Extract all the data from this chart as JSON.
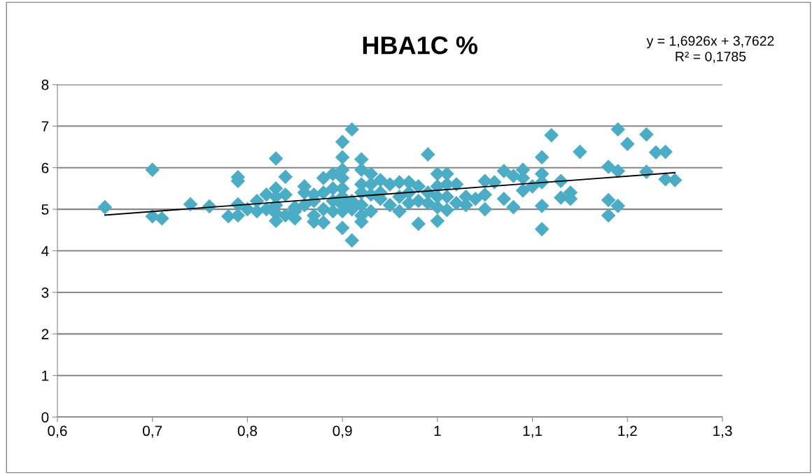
{
  "chart_data": {
    "type": "scatter",
    "title": "HBA1C %",
    "annotations": [
      "y = 1,6926x + 3,7622\nR² = 0,1785"
    ],
    "marker": "diamond",
    "grid": "y",
    "legend": false,
    "xlim": [
      0.6,
      1.3
    ],
    "xticks": [
      {
        "value": 0.6,
        "label": "0,6"
      },
      {
        "value": 0.7,
        "label": "0,7"
      },
      {
        "value": 0.8,
        "label": "0,8"
      },
      {
        "value": 0.9,
        "label": "0,9"
      },
      1,
      {
        "value": 1.1,
        "label": "1,1"
      },
      {
        "value": 1.2,
        "label": "1,2"
      },
      {
        "value": 1.3,
        "label": "1,3"
      }
    ],
    "ylim": [
      0,
      8
    ],
    "yticks": [
      0,
      1,
      2,
      3,
      4,
      5,
      6,
      7,
      8
    ],
    "series": [
      {
        "color": "#4bacc6",
        "x": [
          0.65,
          0.7,
          0.7,
          0.71,
          0.74,
          0.76,
          0.78,
          0.79,
          0.79,
          0.79,
          0.79,
          0.8,
          0.81,
          0.81,
          0.82,
          0.82,
          0.83,
          0.83,
          0.83,
          0.83,
          0.83,
          0.83,
          0.84,
          0.84,
          0.84,
          0.85,
          0.85,
          0.85,
          0.86,
          0.86,
          0.86,
          0.87,
          0.87,
          0.87,
          0.87,
          0.88,
          0.88,
          0.88,
          0.88,
          0.89,
          0.89,
          0.89,
          0.89,
          0.9,
          0.9,
          0.9,
          0.9,
          0.9,
          0.9,
          0.9,
          0.9,
          0.9,
          0.91,
          0.91,
          0.91,
          0.91,
          0.92,
          0.92,
          0.92,
          0.92,
          0.92,
          0.92,
          0.92,
          0.93,
          0.93,
          0.93,
          0.93,
          0.94,
          0.94,
          0.94,
          0.95,
          0.95,
          0.96,
          0.96,
          0.96,
          0.97,
          0.97,
          0.97,
          0.98,
          0.98,
          0.98,
          0.99,
          0.99,
          0.99,
          1.0,
          1.0,
          1.0,
          1.0,
          1.0,
          1.01,
          1.01,
          1.01,
          1.01,
          1.02,
          1.02,
          1.03,
          1.03,
          1.04,
          1.05,
          1.05,
          1.05,
          1.06,
          1.07,
          1.07,
          1.08,
          1.08,
          1.09,
          1.09,
          1.09,
          1.1,
          1.11,
          1.11,
          1.11,
          1.11,
          1.11,
          1.12,
          1.13,
          1.13,
          1.14,
          1.14,
          1.15,
          1.18,
          1.18,
          1.18,
          1.19,
          1.19,
          1.19,
          1.2,
          1.22,
          1.22,
          1.23,
          1.24,
          1.24,
          1.25
        ],
        "values": [
          5.05,
          5.95,
          4.83,
          4.78,
          5.12,
          5.07,
          4.83,
          5.77,
          5.68,
          5.12,
          4.85,
          5.0,
          5.2,
          4.95,
          5.35,
          5.0,
          6.22,
          5.5,
          5.3,
          5.1,
          4.9,
          4.72,
          5.78,
          5.35,
          4.85,
          5.05,
          4.78,
          4.95,
          5.55,
          5.4,
          5.1,
          5.35,
          4.85,
          4.7,
          5.2,
          5.75,
          5.4,
          5.0,
          4.68,
          5.85,
          5.5,
          5.2,
          4.95,
          6.62,
          6.25,
          5.95,
          5.75,
          5.5,
          5.3,
          5.1,
          4.95,
          4.55,
          6.92,
          4.25,
          5.2,
          5.0,
          6.2,
          5.95,
          5.6,
          5.4,
          5.1,
          4.85,
          4.7,
          5.85,
          5.6,
          5.35,
          4.95,
          5.7,
          5.4,
          5.25,
          5.6,
          5.1,
          5.65,
          5.3,
          4.95,
          5.65,
          5.4,
          5.15,
          5.55,
          5.2,
          4.65,
          6.32,
          5.4,
          5.15,
          5.85,
          5.55,
          5.3,
          5.05,
          4.72,
          5.85,
          5.6,
          5.3,
          4.98,
          5.6,
          5.15,
          5.3,
          5.1,
          5.25,
          5.68,
          5.35,
          5.0,
          5.65,
          5.92,
          5.25,
          5.8,
          5.05,
          5.95,
          5.75,
          5.45,
          5.55,
          6.25,
          5.85,
          5.65,
          5.08,
          4.52,
          6.78,
          5.68,
          5.28,
          5.4,
          5.25,
          6.38,
          6.02,
          5.22,
          4.85,
          6.92,
          5.92,
          5.08,
          6.57,
          6.8,
          5.9,
          6.37,
          6.38,
          5.72,
          5.7
        ]
      },
      {
        "type": "line",
        "color": "#000000",
        "x": [
          0.65,
          1.25
        ],
        "values": [
          4.86,
          5.88
        ],
        "marker": "none",
        "line_style": "solid"
      }
    ]
  }
}
